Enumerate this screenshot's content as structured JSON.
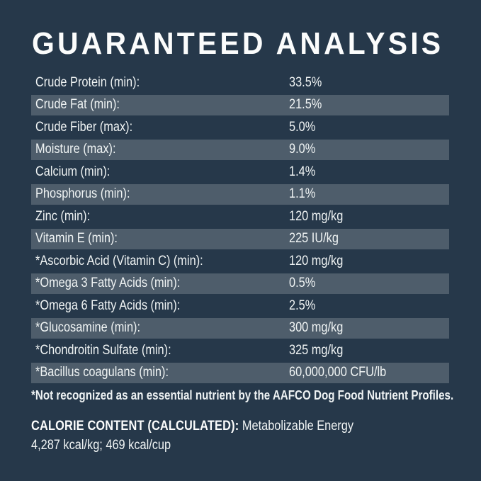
{
  "title": "GUARANTEED ANALYSIS",
  "table": {
    "rows": [
      {
        "label": "Crude Protein (min):",
        "value": "33.5%"
      },
      {
        "label": "Crude Fat (min):",
        "value": "21.5%"
      },
      {
        "label": "Crude Fiber (max):",
        "value": "5.0%"
      },
      {
        "label": "Moisture (max):",
        "value": "9.0%"
      },
      {
        "label": "Calcium (min):",
        "value": "1.4%"
      },
      {
        "label": "Phosphorus (min):",
        "value": "1.1%"
      },
      {
        "label": "Zinc (min):",
        "value": "120 mg/kg"
      },
      {
        "label": "Vitamin E (min):",
        "value": "225 IU/kg"
      },
      {
        "label": "*Ascorbic Acid (Vitamin C) (min):",
        "value": "120 mg/kg"
      },
      {
        "label": "*Omega 3 Fatty Acids (min):",
        "value": "0.5%"
      },
      {
        "label": "*Omega 6 Fatty Acids (min):",
        "value": "2.5%"
      },
      {
        "label": "*Glucosamine (min):",
        "value": "300 mg/kg"
      },
      {
        "label": "*Chondroitin Sulfate (min):",
        "value": "325 mg/kg"
      },
      {
        "label": "*Bacillus coagulans (min):",
        "value": "60,000,000 CFU/lb"
      }
    ]
  },
  "footnote": "*Not recognized as an essential nutrient by the AAFCO Dog Food Nutrient Profiles.",
  "calorie": {
    "heading": "CALORIE CONTENT (CALCULATED):",
    "subheading": "Metabolizable Energy",
    "values": "4,287 kcal/kg; 469 kcal/cup"
  },
  "colors": {
    "background": "#26384a",
    "stripe": "#4e5d6b",
    "text": "#f0f4f4"
  }
}
